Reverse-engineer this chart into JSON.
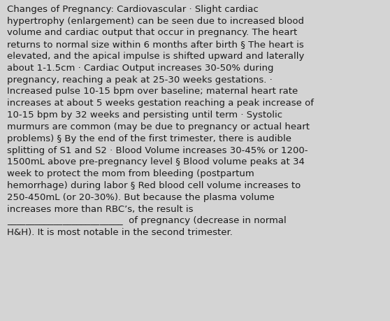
{
  "background_color": "#d4d4d4",
  "text_color": "#1a1a1a",
  "font_family": "DejaVu Sans",
  "font_size": 9.5,
  "figsize": [
    5.58,
    4.6
  ],
  "dpi": 100,
  "lines": [
    "Changes of Pregnancy: Cardiovascular · Slight cardiac",
    "hypertrophy (enlargement) can be seen due to increased blood",
    "volume and cardiac output that occur in pregnancy. The heart",
    "returns to normal size within 6 months after birth § The heart is",
    "elevated, and the apical impulse is shifted upward and laterally",
    "about 1-1.5cm · Cardiac Output increases 30-50% during",
    "pregnancy, reaching a peak at 25-30 weeks gestations. ·",
    "Increased pulse 10-15 bpm over baseline; maternal heart rate",
    "increases at about 5 weeks gestation reaching a peak increase of",
    "10-15 bpm by 32 weeks and persisting until term · Systolic",
    "murmurs are common (may be due to pregnancy or actual heart",
    "problems) § By the end of the first trimester, there is audible",
    "splitting of S1 and S2 · Blood Volume increases 30-45% or 1200-",
    "1500mL above pre-pregnancy level § Blood volume peaks at 34",
    "week to protect the mom from bleeding (postpartum",
    "hemorrhage) during labor § Red blood cell volume increases to",
    "250-450mL (or 20-30%). But because the plasma volume",
    "increases more than RBC’s, the result is",
    "_________________________  of pregnancy (decrease in normal",
    "H&H). It is most notable in the second trimester."
  ]
}
